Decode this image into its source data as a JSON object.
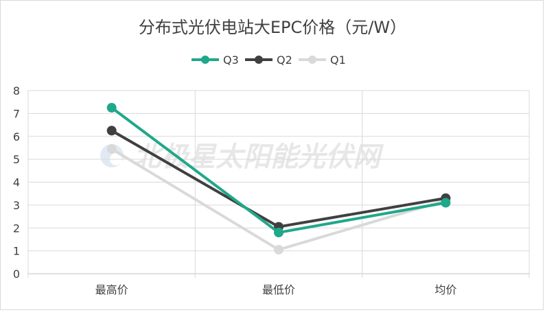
{
  "watermark": "北极星太阳能光伏网",
  "chart_data": {
    "type": "line",
    "title": "分布式光伏电站大EPC价格（元/W）",
    "xlabel": "",
    "ylabel": "",
    "categories": [
      "最高价",
      "最低价",
      "均价"
    ],
    "ylim": [
      0,
      8
    ],
    "yticks": [
      "0",
      "1",
      "2",
      "3",
      "4",
      "5",
      "6",
      "7",
      "8"
    ],
    "grid": true,
    "legend_position": "top",
    "series": [
      {
        "name": "Q3",
        "values": [
          7.25,
          1.8,
          3.1
        ],
        "color": "#1fa88a"
      },
      {
        "name": "Q2",
        "values": [
          6.25,
          2.05,
          3.3
        ],
        "color": "#404040"
      },
      {
        "name": "Q1",
        "values": [
          5.45,
          1.05,
          3.2
        ],
        "color": "#d9d9d9"
      }
    ]
  }
}
